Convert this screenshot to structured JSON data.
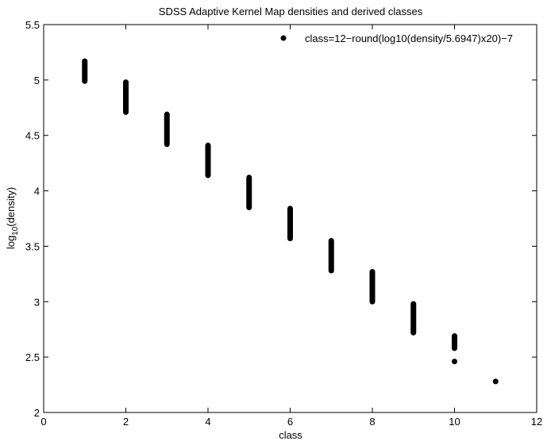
{
  "chart_data": {
    "type": "scatter",
    "title": "SDSS Adaptive Kernel Map densities and derived classes",
    "xlabel": "class",
    "ylabel_main": "log",
    "ylabel_sub": "10",
    "ylabel_tail": "(density)",
    "xlim": [
      0,
      12
    ],
    "ylim": [
      2,
      5.5
    ],
    "xticks": [
      0,
      2,
      4,
      6,
      8,
      10,
      12
    ],
    "yticks": [
      2,
      2.5,
      3,
      3.5,
      4,
      4.5,
      5,
      5.5
    ],
    "grid": false,
    "legend_position": "top-right",
    "series": [
      {
        "legend_label": "class=12−round(log10(density/5.6947)x20)−7",
        "color": "#000000",
        "marker": "circle",
        "clusters": [
          {
            "x": 1,
            "y_min": 4.99,
            "y_max": 5.17
          },
          {
            "x": 2,
            "y_min": 4.71,
            "y_max": 4.98
          },
          {
            "x": 3,
            "y_min": 4.42,
            "y_max": 4.69
          },
          {
            "x": 4,
            "y_min": 4.14,
            "y_max": 4.41
          },
          {
            "x": 5,
            "y_min": 3.85,
            "y_max": 4.12
          },
          {
            "x": 6,
            "y_min": 3.57,
            "y_max": 3.84
          },
          {
            "x": 7,
            "y_min": 3.28,
            "y_max": 3.55
          },
          {
            "x": 8,
            "y_min": 3.0,
            "y_max": 3.27
          },
          {
            "x": 9,
            "y_min": 2.72,
            "y_max": 2.98
          },
          {
            "x": 10,
            "y_min": 2.58,
            "y_max": 2.69
          }
        ],
        "points": [
          {
            "x": 10,
            "y": 2.46
          },
          {
            "x": 11,
            "y": 2.28
          }
        ]
      }
    ]
  }
}
